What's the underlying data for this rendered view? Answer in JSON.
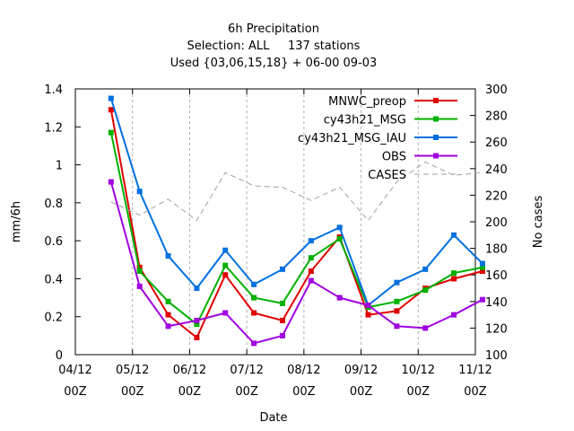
{
  "chart_data": {
    "type": "line",
    "title": "6h Precipitation",
    "subtitle_lines": [
      "Selection: ALL     137 stations",
      "Used {03,06,15,18} + 06-00 09-03"
    ],
    "xlabel": "Date",
    "ylabel": "mm/6h",
    "y2label": "No cases",
    "ylim": [
      0,
      1.4
    ],
    "y2lim": [
      100,
      300
    ],
    "xlim": [
      0,
      168
    ],
    "x_unit": "hours since 04/12 00Z",
    "xticks": [
      {
        "x": 0,
        "line1": "04/12",
        "line2": "00Z"
      },
      {
        "x": 24,
        "line1": "05/12",
        "line2": "00Z"
      },
      {
        "x": 48,
        "line1": "06/12",
        "line2": "00Z"
      },
      {
        "x": 72,
        "line1": "07/12",
        "line2": "00Z"
      },
      {
        "x": 96,
        "line1": "08/12",
        "line2": "00Z"
      },
      {
        "x": 120,
        "line1": "09/12",
        "line2": "00Z"
      },
      {
        "x": 144,
        "line1": "10/12",
        "line2": "00Z"
      },
      {
        "x": 168,
        "line1": "11/12",
        "line2": "00Z"
      }
    ],
    "yticks": [
      "0",
      "0.2",
      "0.4",
      "0.6",
      "0.8",
      "1",
      "1.2",
      "1.4"
    ],
    "y2ticks": [
      "100",
      "120",
      "140",
      "160",
      "180",
      "200",
      "220",
      "240",
      "260",
      "280",
      "300"
    ],
    "x": [
      15,
      27,
      39,
      51,
      63,
      75,
      87,
      99,
      111,
      123,
      135,
      147,
      159,
      171
    ],
    "legend_placement": "top-right",
    "series": [
      {
        "name": "MNWC_preop",
        "color": "#e00000",
        "axis": "y",
        "values": [
          1.29,
          0.46,
          0.21,
          0.09,
          0.42,
          0.22,
          0.18,
          0.44,
          0.62,
          0.21,
          0.23,
          0.35,
          0.4,
          0.44
        ]
      },
      {
        "name": "cy43h21_MSG",
        "color": "#00b000",
        "axis": "y",
        "values": [
          1.17,
          0.44,
          0.28,
          0.16,
          0.47,
          0.3,
          0.27,
          0.51,
          0.61,
          0.25,
          0.28,
          0.34,
          0.43,
          0.46
        ]
      },
      {
        "name": "cy43h21_MSG_IAU",
        "color": "#0070e0",
        "axis": "y",
        "values": [
          1.35,
          0.86,
          0.52,
          0.35,
          0.55,
          0.37,
          0.45,
          0.6,
          0.67,
          0.26,
          0.38,
          0.45,
          0.63,
          0.48
        ]
      },
      {
        "name": "OBS",
        "color": "#a000e0",
        "axis": "y",
        "values": [
          0.91,
          0.36,
          0.15,
          0.18,
          0.22,
          0.06,
          0.1,
          0.39,
          0.3,
          0.26,
          0.15,
          0.14,
          0.21,
          0.29
        ]
      },
      {
        "name": "CASES",
        "color": "#a0a0a0",
        "axis": "y2",
        "dashed": true,
        "markers": false,
        "values": [
          215,
          205,
          217,
          201,
          237,
          227,
          226,
          216,
          226,
          201,
          230,
          245,
          235,
          237
        ]
      }
    ]
  }
}
